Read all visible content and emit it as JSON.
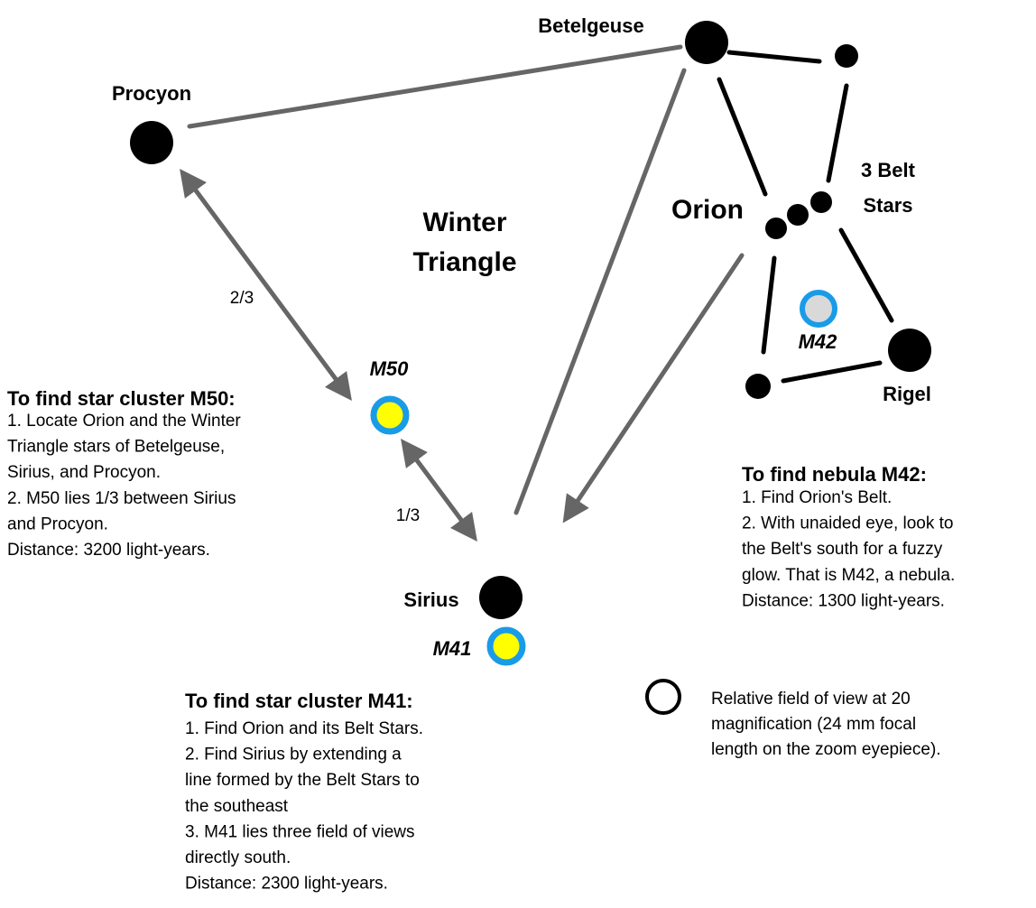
{
  "labels": {
    "betelgeuse": "Betelgeuse",
    "procyon": "Procyon",
    "rigel": "Rigel",
    "sirius": "Sirius",
    "orion": "Orion",
    "winter_triangle": [
      "Winter",
      "Triangle"
    ],
    "belt_stars": [
      "3 Belt",
      "Stars"
    ],
    "m42": "M42",
    "m50": "M50",
    "m41": "M41",
    "ratio_two_thirds": "2/3",
    "ratio_one_third": "1/3"
  },
  "notes": [
    {
      "heading": "To find star cluster M50:",
      "lines": [
        "1. Locate Orion and the Winter",
        "Triangle stars of Betelgeuse,",
        "Sirius, and Procyon.",
        "2. M50 lies 1/3 between Sirius",
        "and Procyon.",
        "Distance: 3200 light-years."
      ]
    },
    {
      "heading": "To find nebula M42:",
      "lines": [
        "1. Find Orion's Belt.",
        "2. With unaided eye, look to",
        "the Belt's south for a fuzzy",
        "glow. That is M42, a nebula.",
        "Distance: 1300 light-years."
      ]
    },
    {
      "heading": "To find star cluster M41:",
      "lines": [
        "1. Find Orion and its Belt Stars.",
        "2. Find Sirius by extending a",
        "line formed by the Belt Stars to",
        "the southeast",
        "3. M41 lies three field of views",
        "directly south.",
        "Distance: 2300 light-years."
      ]
    }
  ],
  "legend": {
    "lines": [
      "Relative field of view at 20",
      "magnification (24 mm focal",
      "length on the zoom eyepiece)."
    ]
  }
}
